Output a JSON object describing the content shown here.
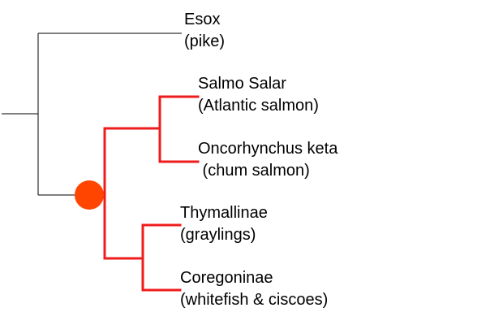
{
  "colors": {
    "branch": "#000000",
    "highlight_branch": "#ee1c1c",
    "node_marker": "#ff4500",
    "background": "#ffffff"
  },
  "taxa": {
    "esox": {
      "name": "Esox",
      "common": "(pike)"
    },
    "salmo": {
      "name": "Salmo Salar",
      "common": "(Atlantic salmon)"
    },
    "oncorhynchus": {
      "name": "Oncorhynchus keta",
      "common": " (chum salmon)"
    },
    "thymallinae": {
      "name": "Thymallinae",
      "common": "(graylings)"
    },
    "coregoninae": {
      "name": "Coregoninae",
      "common": "(whitefish & ciscoes)"
    }
  }
}
